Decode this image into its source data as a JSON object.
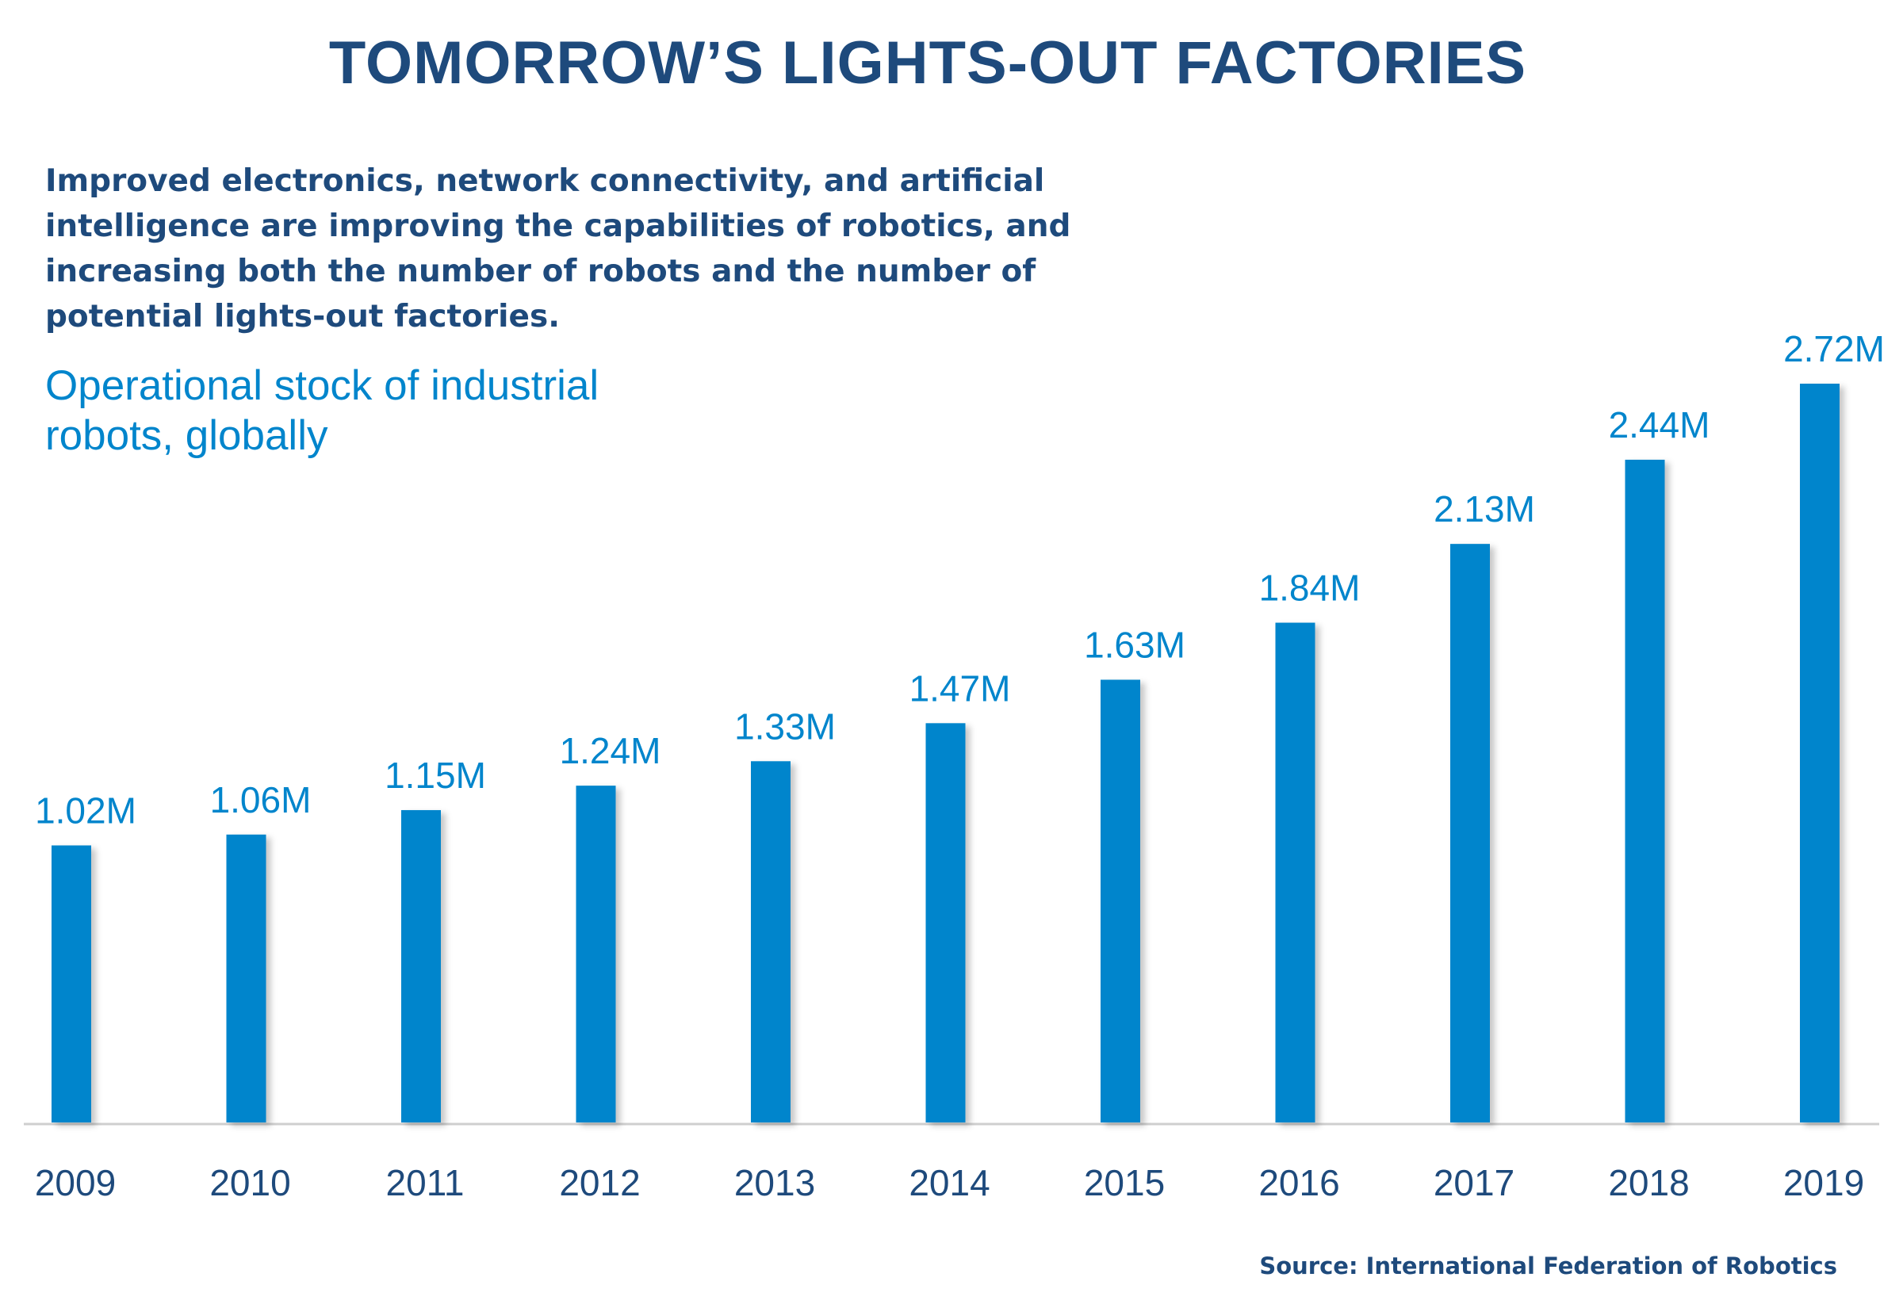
{
  "title": "TOMORROW’S LIGHTS-OUT FACTORIES",
  "subtitle": "Improved electronics, network connectivity, and artificial intelligence are improving the capabilities of robotics, and increasing both the number of robots and the number of potential lights-out factories.",
  "source": "Source: International Federation of Robotics",
  "colors": {
    "bar": "#0085cc",
    "title": "#1e4a7c",
    "label": "#0085cc",
    "axis": "#cfcfcf"
  },
  "chart_data": {
    "type": "bar",
    "title": "Operational stock of industrial robots, globally",
    "xlabel": "",
    "ylabel": "",
    "categories": [
      "2009",
      "2010",
      "2011",
      "2012",
      "2013",
      "2014",
      "2015",
      "2016",
      "2017",
      "2018",
      "2019"
    ],
    "values": [
      1.02,
      1.06,
      1.15,
      1.24,
      1.33,
      1.47,
      1.63,
      1.84,
      2.13,
      2.44,
      2.72
    ],
    "value_labels": [
      "1.02M",
      "1.06M",
      "1.15M",
      "1.24M",
      "1.33M",
      "1.47M",
      "1.63M",
      "1.84M",
      "2.13M",
      "2.44M",
      "2.72M"
    ],
    "units": "M",
    "ylim": [
      0,
      2.72
    ],
    "grid": false,
    "legend": "none"
  }
}
